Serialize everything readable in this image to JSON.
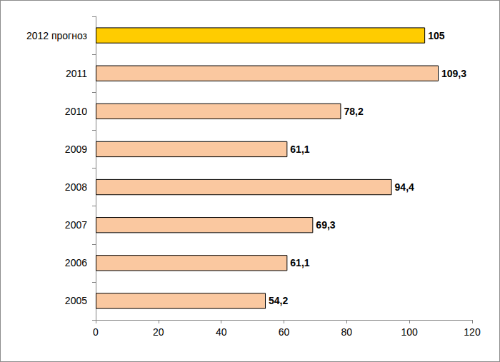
{
  "chart_data": {
    "type": "bar",
    "orientation": "horizontal",
    "categories": [
      "2005",
      "2006",
      "2007",
      "2008",
      "2009",
      "2010",
      "2011",
      "2012 прогноз"
    ],
    "values": [
      54.2,
      61.1,
      69.3,
      94.4,
      61.1,
      78.2,
      109.3,
      105
    ],
    "value_labels": [
      "54,2",
      "61,1",
      "69,3",
      "94,4",
      "61,1",
      "78,2",
      "109,3",
      "105"
    ],
    "colors": [
      "#fac8a0",
      "#fac8a0",
      "#fac8a0",
      "#fac8a0",
      "#fac8a0",
      "#fac8a0",
      "#fac8a0",
      "#ffcc00"
    ],
    "xlim": [
      0,
      120
    ],
    "xticks": [
      0,
      20,
      40,
      60,
      80,
      100,
      120
    ],
    "grid": false,
    "data_labels": true
  }
}
